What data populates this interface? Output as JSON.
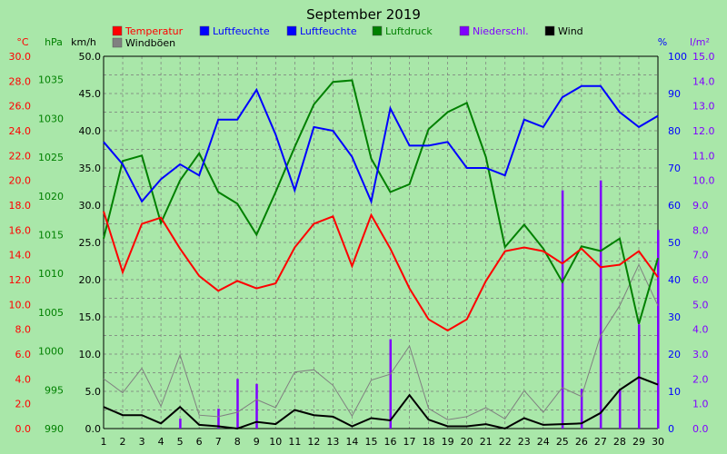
{
  "chart_data": {
    "type": "line",
    "title": "September 2019",
    "x": [
      1,
      2,
      3,
      4,
      5,
      6,
      7,
      8,
      9,
      10,
      11,
      12,
      13,
      14,
      15,
      16,
      17,
      18,
      19,
      20,
      21,
      22,
      23,
      24,
      25,
      26,
      27,
      28,
      29,
      30
    ],
    "axes": {
      "temp": {
        "unit": "°C",
        "min": 0,
        "max": 30,
        "step": 2,
        "ticks": [
          "0.0",
          "2.0",
          "4.0",
          "6.0",
          "8.0",
          "10.0",
          "12.0",
          "14.0",
          "16.0",
          "18.0",
          "20.0",
          "22.0",
          "24.0",
          "26.0",
          "28.0",
          "30.0"
        ],
        "color": "#ff0000"
      },
      "pressure": {
        "unit": "hPa",
        "min": 990,
        "max": 1038,
        "ticks": [
          "990",
          "995",
          "1000",
          "1005",
          "1010",
          "1015",
          "1020",
          "1025",
          "1030",
          "1035"
        ],
        "color": "#008000"
      },
      "wind": {
        "unit": "km/h",
        "min": 0,
        "max": 50,
        "ticks": [
          "0.0",
          "5.0",
          "10.0",
          "15.0",
          "20.0",
          "25.0",
          "30.0",
          "35.0",
          "40.0",
          "45.0",
          "50.0"
        ],
        "color": "#000000"
      },
      "humidity": {
        "unit": "%",
        "min": 0,
        "max": 100,
        "ticks": [
          "0",
          "10",
          "20",
          "30",
          "40",
          "50",
          "60",
          "70",
          "80",
          "90",
          "100"
        ],
        "color": "#0000ff"
      },
      "precip": {
        "unit": "l/m²",
        "min": 0,
        "max": 15,
        "ticks": [
          "0.0",
          "1.0",
          "2.0",
          "3.0",
          "4.0",
          "5.0",
          "6.0",
          "7.0",
          "8.0",
          "9.0",
          "10.0",
          "11.0",
          "12.0",
          "13.0",
          "14.0",
          "15.0"
        ],
        "color": "#8000ff"
      }
    },
    "legend": [
      {
        "label": "Temperatur",
        "color": "#ff0000"
      },
      {
        "label": "Luftfeuchte",
        "color": "#0000ff"
      },
      {
        "label": "Luftfeuchte",
        "color": "#0000ff"
      },
      {
        "label": "Luftdruck",
        "color": "#008000"
      },
      {
        "label": "Niederschl.",
        "color": "#8000ff"
      },
      {
        "label": "Wind",
        "color": "#000000"
      },
      {
        "label": "Windböen",
        "color": "#808080"
      }
    ],
    "series": [
      {
        "name": "Temperatur",
        "axis": "temp",
        "color": "#ff0000",
        "kind": "line",
        "values": [
          17.5,
          12.6,
          16.5,
          17.0,
          14.5,
          12.3,
          11.1,
          11.9,
          11.3,
          11.7,
          14.6,
          16.5,
          17.1,
          13.1,
          17.2,
          14.5,
          11.3,
          8.8,
          7.9,
          8.8,
          11.9,
          14.3,
          14.6,
          14.3,
          13.3,
          14.5,
          13.0,
          13.2,
          14.3,
          12.2
        ]
      },
      {
        "name": "Luftfeuchte",
        "axis": "humidity",
        "color": "#0000ff",
        "kind": "line",
        "values": [
          77,
          71,
          61,
          67,
          71,
          68,
          83,
          83,
          91,
          79,
          64,
          81,
          80,
          73,
          61,
          86,
          76,
          76,
          77,
          70,
          70,
          68,
          83,
          81,
          89,
          92,
          92,
          85,
          81,
          84
        ]
      },
      {
        "name": "Luftdruck",
        "axis": "pressure",
        "color": "#008000",
        "kind": "line",
        "values": [
          1014.5,
          1024.5,
          1025.2,
          1016.5,
          1022.0,
          1025.5,
          1020.5,
          1019.0,
          1015.0,
          1020.5,
          1026.3,
          1031.8,
          1034.7,
          1034.9,
          1024.8,
          1020.5,
          1021.5,
          1028.6,
          1030.8,
          1032.0,
          1025.0,
          1013.4,
          1016.3,
          1013.2,
          1008.9,
          1013.5,
          1012.9,
          1014.5,
          1003.5,
          1012.0
        ]
      },
      {
        "name": "Wind",
        "axis": "wind",
        "color": "#000000",
        "kind": "line",
        "values": [
          2.9,
          1.8,
          1.8,
          0.7,
          2.9,
          0.5,
          0.3,
          0.0,
          0.9,
          0.6,
          2.5,
          1.8,
          1.6,
          0.3,
          1.4,
          1.1,
          4.5,
          1.2,
          0.3,
          0.3,
          0.6,
          0.0,
          1.4,
          0.5,
          0.6,
          0.7,
          2.1,
          5.2,
          6.9,
          5.9
        ]
      },
      {
        "name": "Windböen",
        "axis": "wind",
        "color": "#808080",
        "kind": "line",
        "values": [
          6.7,
          4.8,
          8.1,
          3.0,
          9.9,
          1.8,
          1.6,
          2.2,
          3.9,
          2.8,
          7.6,
          7.9,
          5.8,
          1.7,
          6.5,
          7.3,
          11.1,
          2.7,
          1.2,
          1.6,
          2.8,
          1.3,
          5.1,
          2.2,
          5.5,
          4.3,
          12.5,
          16.5,
          22.0,
          16.5
        ]
      },
      {
        "name": "Niederschl.",
        "axis": "precip",
        "color": "#8000ff",
        "kind": "bar",
        "values": [
          0,
          0,
          0,
          0,
          0.4,
          0,
          0.8,
          2.0,
          1.8,
          0,
          0,
          0,
          0,
          0,
          0,
          3.6,
          0,
          0,
          0,
          0,
          0,
          0,
          0,
          0,
          9.6,
          1.6,
          10.0,
          1.6,
          4.2,
          8.0
        ]
      }
    ],
    "grid": true
  }
}
